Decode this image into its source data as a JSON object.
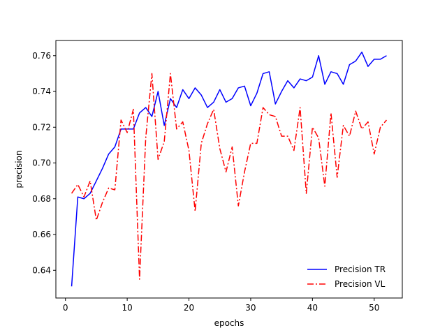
{
  "chart_data": {
    "type": "line",
    "title": "",
    "xlabel": "epochs",
    "ylabel": "precision",
    "xlim": [
      -1.55,
      54.55
    ],
    "ylim": [
      0.6245,
      0.7685
    ],
    "xticks": [
      0,
      10,
      20,
      30,
      40,
      50
    ],
    "yticks": [
      0.64,
      0.66,
      0.68,
      0.7,
      0.72,
      0.74,
      0.76
    ],
    "grid": false,
    "legend": {
      "placement": "lower-right"
    },
    "x": [
      1,
      2,
      3,
      4,
      5,
      6,
      7,
      8,
      9,
      10,
      11,
      12,
      13,
      14,
      15,
      16,
      17,
      18,
      19,
      20,
      21,
      22,
      23,
      24,
      25,
      26,
      27,
      28,
      29,
      30,
      31,
      32,
      33,
      34,
      35,
      36,
      37,
      38,
      39,
      40,
      41,
      42,
      43,
      44,
      45,
      46,
      47,
      48,
      49,
      50,
      51,
      52
    ],
    "series": [
      {
        "name": "Precision TR",
        "color": "#0000ff",
        "style": "solid",
        "values": [
          0.631,
          0.681,
          0.68,
          0.683,
          0.69,
          0.697,
          0.705,
          0.709,
          0.719,
          0.719,
          0.719,
          0.728,
          0.731,
          0.726,
          0.74,
          0.721,
          0.736,
          0.731,
          0.741,
          0.736,
          0.742,
          0.738,
          0.731,
          0.734,
          0.741,
          0.734,
          0.736,
          0.742,
          0.743,
          0.732,
          0.739,
          0.75,
          0.751,
          0.733,
          0.74,
          0.746,
          0.742,
          0.747,
          0.746,
          0.748,
          0.76,
          0.744,
          0.751,
          0.75,
          0.744,
          0.755,
          0.757,
          0.762,
          0.754,
          0.758,
          0.758,
          0.76
        ]
      },
      {
        "name": "Precision VL",
        "color": "#ff0000",
        "style": "dashdot",
        "values": [
          0.683,
          0.688,
          0.681,
          0.69,
          0.668,
          0.678,
          0.686,
          0.685,
          0.724,
          0.717,
          0.73,
          0.635,
          0.714,
          0.75,
          0.702,
          0.712,
          0.75,
          0.719,
          0.723,
          0.707,
          0.673,
          0.711,
          0.722,
          0.73,
          0.708,
          0.695,
          0.709,
          0.676,
          0.695,
          0.711,
          0.711,
          0.731,
          0.727,
          0.726,
          0.715,
          0.715,
          0.707,
          0.731,
          0.683,
          0.72,
          0.714,
          0.687,
          0.728,
          0.692,
          0.721,
          0.715,
          0.729,
          0.719,
          0.723,
          0.705,
          0.72,
          0.724
        ]
      }
    ]
  }
}
